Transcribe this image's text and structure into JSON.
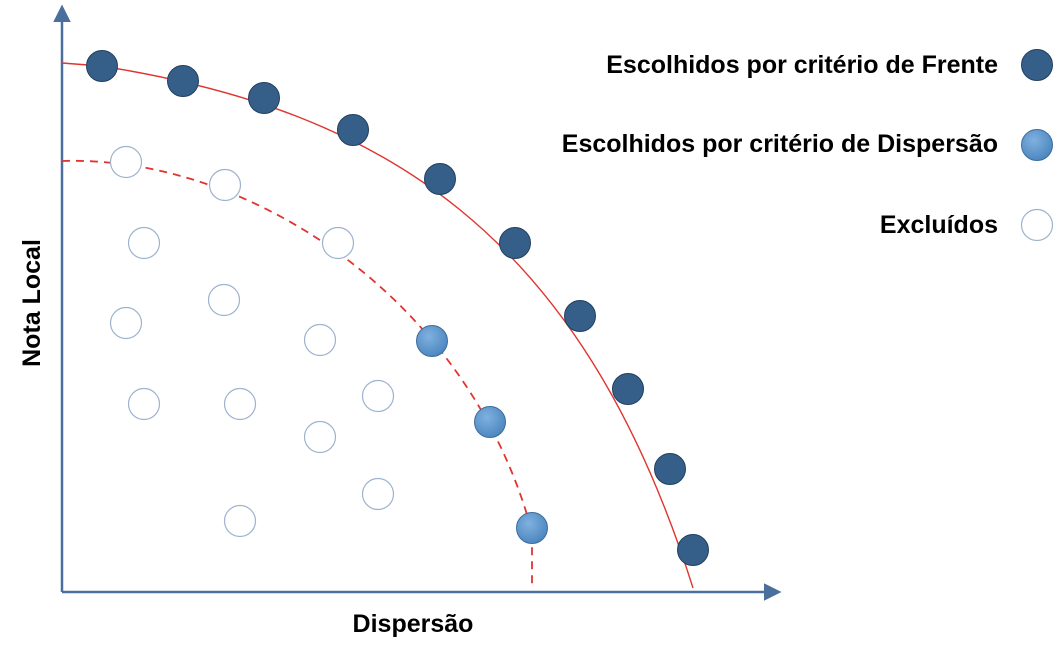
{
  "axes": {
    "x_label": "Dispersão",
    "y_label": "Nota Local"
  },
  "legend": {
    "items": [
      {
        "label": "Escolhidos por critério de Frente",
        "kind": "front"
      },
      {
        "label": "Escolhidos por critério de Dispersão",
        "kind": "disp"
      },
      {
        "label": "Excluídos",
        "kind": "excl"
      }
    ]
  },
  "colors": {
    "front_point": "#355f88",
    "dispersion_point": "#5a93c9",
    "excluded_point_stroke": "#9eb3cf",
    "curve": "#e0342f",
    "axis": "#4a6f9c"
  }
}
